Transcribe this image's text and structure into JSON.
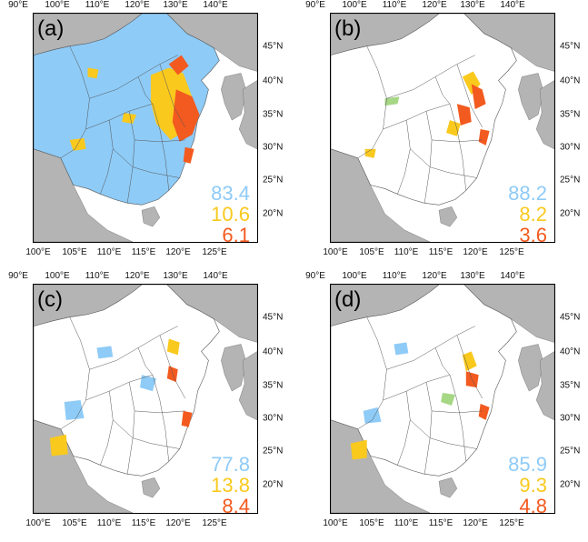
{
  "colors": {
    "category1": "#8ecbf7",
    "category2": "#f9c91e",
    "category3": "#f35a1f",
    "light_green": "#a6d785",
    "land_gray": "#b4b4b4",
    "boundary": "#555555"
  },
  "axes": {
    "top_lon_labels": [
      "90°E",
      "100°E",
      "110°E",
      "120°E",
      "130°E",
      "140°E"
    ],
    "bottom_lon_labels": [
      "100°E",
      "105°E",
      "110°E",
      "115°E",
      "120°E",
      "125°E"
    ],
    "lat_labels": [
      "45°N",
      "40°N",
      "35°N",
      "30°N",
      "25°N",
      "20°N"
    ]
  },
  "panels": [
    {
      "label": "(a)",
      "values": [
        "83.4",
        "10.6",
        "6.1"
      ]
    },
    {
      "label": "(b)",
      "values": [
        "88.2",
        "8.2",
        "3.6"
      ]
    },
    {
      "label": "(c)",
      "values": [
        "77.8",
        "13.8",
        "8.4"
      ]
    },
    {
      "label": "(d)",
      "values": [
        "85.9",
        "9.3",
        "4.8"
      ]
    }
  ]
}
